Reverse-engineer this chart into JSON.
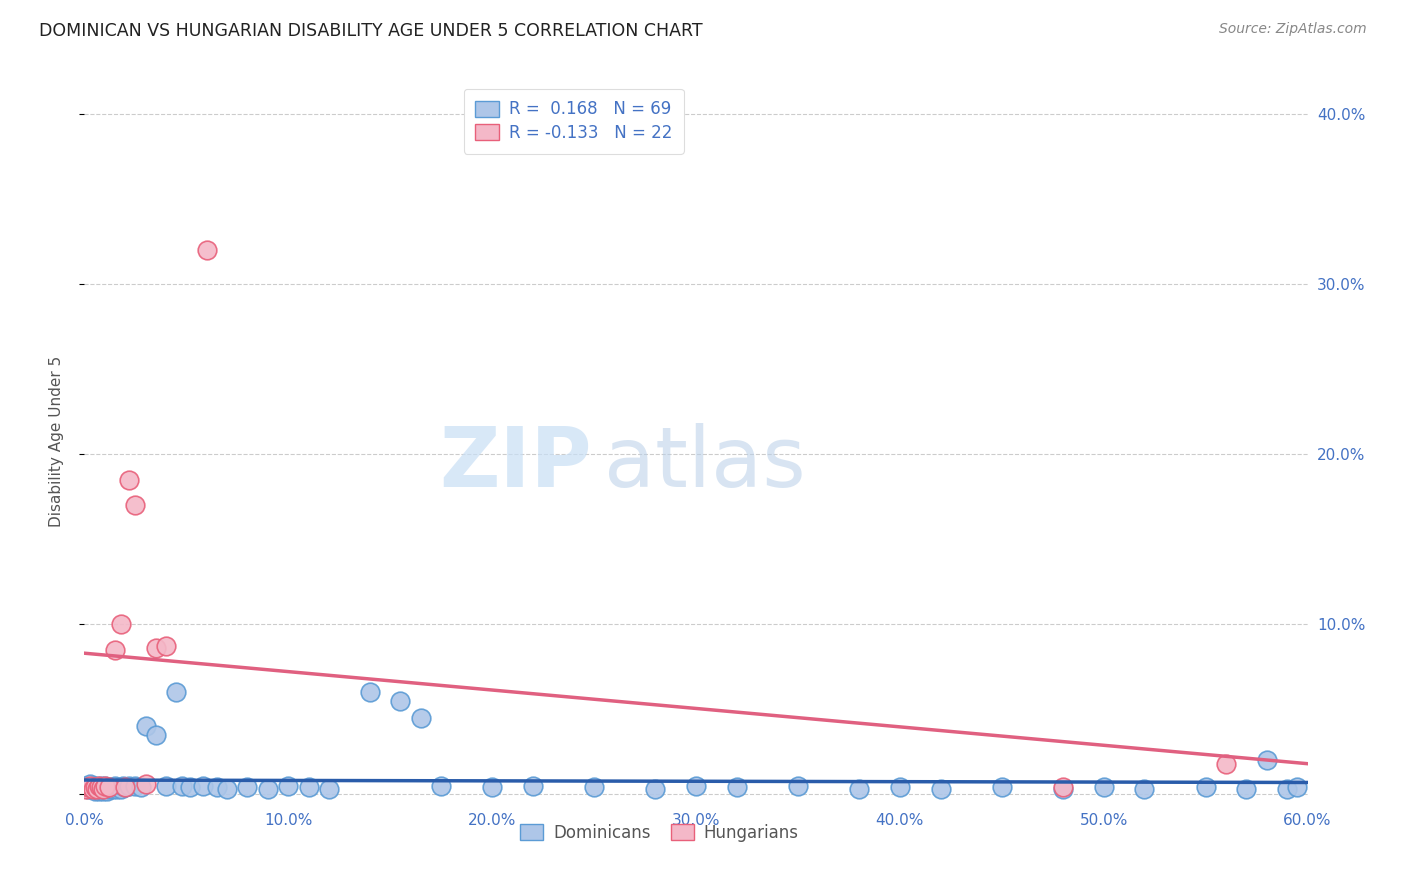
{
  "title": "DOMINICAN VS HUNGARIAN DISABILITY AGE UNDER 5 CORRELATION CHART",
  "source": "Source: ZipAtlas.com",
  "ylabel": "Disability Age Under 5",
  "xlim": [
    0.0,
    0.6
  ],
  "ylim": [
    -0.005,
    0.42
  ],
  "xtick_labels": [
    "0.0%",
    "10.0%",
    "20.0%",
    "30.0%",
    "40.0%",
    "50.0%",
    "60.0%"
  ],
  "xtick_vals": [
    0.0,
    0.1,
    0.2,
    0.3,
    0.4,
    0.5,
    0.6
  ],
  "ytick_labels": [
    "",
    "10.0%",
    "20.0%",
    "30.0%",
    "40.0%"
  ],
  "ytick_vals": [
    0.0,
    0.1,
    0.2,
    0.3,
    0.4
  ],
  "dominican_color": "#aec6e8",
  "dominican_edge": "#5b9bd5",
  "hungarian_color": "#f4b8c8",
  "hungarian_edge": "#e8607a",
  "trend_dominican": "#2a5caa",
  "trend_hungarian": "#e06080",
  "watermark_zip": "ZIP",
  "watermark_atlas": "atlas",
  "dominican_x": [
    0.001,
    0.002,
    0.003,
    0.003,
    0.004,
    0.004,
    0.005,
    0.005,
    0.006,
    0.006,
    0.007,
    0.007,
    0.008,
    0.008,
    0.009,
    0.009,
    0.01,
    0.01,
    0.011,
    0.011,
    0.012,
    0.013,
    0.014,
    0.015,
    0.016,
    0.017,
    0.018,
    0.019,
    0.02,
    0.022,
    0.025,
    0.028,
    0.03,
    0.035,
    0.04,
    0.045,
    0.048,
    0.052,
    0.058,
    0.065,
    0.07,
    0.08,
    0.09,
    0.1,
    0.11,
    0.12,
    0.14,
    0.155,
    0.165,
    0.175,
    0.2,
    0.22,
    0.25,
    0.28,
    0.3,
    0.32,
    0.35,
    0.38,
    0.4,
    0.42,
    0.45,
    0.48,
    0.5,
    0.52,
    0.55,
    0.57,
    0.58,
    0.59,
    0.595
  ],
  "dominican_y": [
    0.005,
    0.003,
    0.004,
    0.006,
    0.003,
    0.005,
    0.002,
    0.004,
    0.003,
    0.005,
    0.002,
    0.004,
    0.003,
    0.005,
    0.002,
    0.004,
    0.003,
    0.005,
    0.002,
    0.004,
    0.003,
    0.004,
    0.003,
    0.005,
    0.003,
    0.004,
    0.003,
    0.005,
    0.004,
    0.005,
    0.005,
    0.004,
    0.04,
    0.035,
    0.005,
    0.06,
    0.005,
    0.004,
    0.005,
    0.004,
    0.003,
    0.004,
    0.003,
    0.005,
    0.004,
    0.003,
    0.06,
    0.055,
    0.045,
    0.005,
    0.004,
    0.005,
    0.004,
    0.003,
    0.005,
    0.004,
    0.005,
    0.003,
    0.004,
    0.003,
    0.004,
    0.003,
    0.004,
    0.003,
    0.004,
    0.003,
    0.02,
    0.003,
    0.004
  ],
  "hungarian_x": [
    0.001,
    0.002,
    0.003,
    0.004,
    0.005,
    0.006,
    0.007,
    0.008,
    0.009,
    0.01,
    0.012,
    0.015,
    0.018,
    0.02,
    0.022,
    0.025,
    0.03,
    0.035,
    0.04,
    0.06,
    0.48,
    0.56
  ],
  "hungarian_y": [
    0.003,
    0.004,
    0.005,
    0.003,
    0.004,
    0.003,
    0.005,
    0.004,
    0.003,
    0.005,
    0.004,
    0.085,
    0.1,
    0.004,
    0.185,
    0.17,
    0.006,
    0.086,
    0.087,
    0.32,
    0.004,
    0.018
  ],
  "legend_R_dominican": "R =  0.168",
  "legend_N_dominican": "N = 69",
  "legend_R_hungarian": "R = -0.133",
  "legend_N_hungarian": "N = 22"
}
